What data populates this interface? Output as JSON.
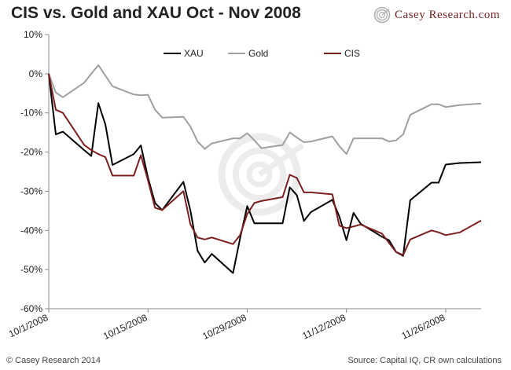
{
  "header": {
    "title": "CIS vs. Gold and XAU Oct - Nov 2008",
    "brand": "Casey Research.com"
  },
  "footer": {
    "copyright": "© Casey Research 2014",
    "source": "Source: Capital IQ, CR own calculations"
  },
  "colors": {
    "xau": "#000000",
    "gold": "#a0a0a0",
    "cis": "#7b1f1f",
    "brand": "#7a1f1f"
  },
  "chart_data": {
    "type": "line",
    "title": "CIS vs. Gold and XAU Oct - Nov 2008",
    "xlabel": "",
    "ylabel": "",
    "ylim": [
      -60,
      10
    ],
    "yticks": [
      10,
      0,
      -10,
      -20,
      -30,
      -40,
      -50,
      -60
    ],
    "ytick_labels": [
      "10%",
      "0%",
      "-10%",
      "-20%",
      "-30%",
      "-40%",
      "-50%",
      "-60%"
    ],
    "xticks": [
      "2008-10-01",
      "2008-10-15",
      "2008-10-29",
      "2008-11-12",
      "2008-11-26"
    ],
    "xtick_labels": [
      "10/1/2008",
      "10/15/2008",
      "10/29/2008",
      "11/12/2008",
      "11/26/2008"
    ],
    "xlim": [
      "2008-10-01",
      "2008-12-01"
    ],
    "grid": false,
    "legend": "top",
    "legend_entries": [
      "XAU",
      "Gold",
      "CIS"
    ],
    "x": [
      "2008-10-01",
      "2008-10-02",
      "2008-10-03",
      "2008-10-06",
      "2008-10-07",
      "2008-10-08",
      "2008-10-09",
      "2008-10-10",
      "2008-10-13",
      "2008-10-14",
      "2008-10-15",
      "2008-10-16",
      "2008-10-17",
      "2008-10-20",
      "2008-10-21",
      "2008-10-22",
      "2008-10-23",
      "2008-10-24",
      "2008-10-27",
      "2008-10-28",
      "2008-10-29",
      "2008-10-30",
      "2008-10-31",
      "2008-11-03",
      "2008-11-04",
      "2008-11-05",
      "2008-11-06",
      "2008-11-07",
      "2008-11-10",
      "2008-11-11",
      "2008-11-12",
      "2008-11-13",
      "2008-11-14",
      "2008-11-17",
      "2008-11-18",
      "2008-11-19",
      "2008-11-20",
      "2008-11-21",
      "2008-11-24",
      "2008-11-25",
      "2008-11-26",
      "2008-11-28",
      "2008-12-01"
    ],
    "series": [
      {
        "name": "XAU",
        "values": [
          0,
          -15.5,
          -14.8,
          -19.5,
          -21,
          -7.5,
          -13,
          -23.3,
          -20.5,
          -18.3,
          -26.5,
          -33,
          -34.8,
          -27.6,
          -35,
          -45.2,
          -48.2,
          -46,
          -50.9,
          -42,
          -33.8,
          -38.2,
          -38.2,
          -38.2,
          -29,
          -31,
          -37.6,
          -35.3,
          -32.2,
          -36.5,
          -42.5,
          -35.5,
          -38.3,
          -41.6,
          -42.5,
          -45.5,
          -46.5,
          -32.3,
          -27.8,
          -27.8,
          -23.2,
          -22.8,
          -22.6
        ]
      },
      {
        "name": "Gold",
        "values": [
          0,
          -4.8,
          -6,
          -2.3,
          0,
          2.2,
          -0.5,
          -3.2,
          -5.3,
          -5.5,
          -5.4,
          -9.2,
          -11.2,
          -11,
          -13.5,
          -17.3,
          -19.2,
          -17.8,
          -16.5,
          -16.5,
          -15.2,
          -17,
          -19,
          -18.2,
          -15,
          -16.3,
          -17.5,
          -17.3,
          -16,
          -18.5,
          -20.5,
          -16.5,
          -16.5,
          -16.5,
          -17.3,
          -17,
          -15.5,
          -10.5,
          -7.8,
          -7.8,
          -8.5,
          -8,
          -7.6
        ]
      },
      {
        "name": "CIS",
        "values": [
          0,
          -9.2,
          -10,
          -18.2,
          -19.5,
          -20.5,
          -21.3,
          -26,
          -26,
          -20.8,
          -27.2,
          -34.2,
          -34.8,
          -30,
          -38.5,
          -41.8,
          -42.3,
          -41.8,
          -43.5,
          -41.2,
          -35.8,
          -33,
          -32.5,
          -31.5,
          -25.8,
          -26.6,
          -30.3,
          -30.3,
          -30.8,
          -38.8,
          -39.4,
          -39,
          -38.5,
          -40.8,
          -43.2,
          -45.5,
          -46.3,
          -42.3,
          -40,
          -40.5,
          -41.2,
          -40.5,
          -37.5
        ]
      }
    ]
  }
}
